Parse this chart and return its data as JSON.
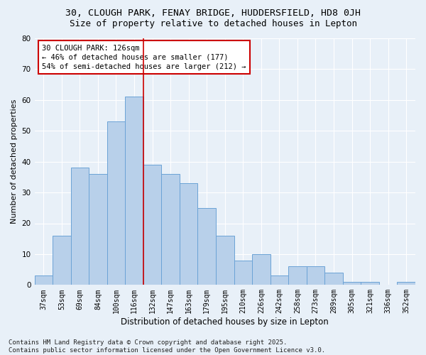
{
  "title1": "30, CLOUGH PARK, FENAY BRIDGE, HUDDERSFIELD, HD8 0JH",
  "title2": "Size of property relative to detached houses in Lepton",
  "xlabel": "Distribution of detached houses by size in Lepton",
  "ylabel": "Number of detached properties",
  "categories": [
    "37sqm",
    "53sqm",
    "69sqm",
    "84sqm",
    "100sqm",
    "116sqm",
    "132sqm",
    "147sqm",
    "163sqm",
    "179sqm",
    "195sqm",
    "210sqm",
    "226sqm",
    "242sqm",
    "258sqm",
    "273sqm",
    "289sqm",
    "305sqm",
    "321sqm",
    "336sqm",
    "352sqm"
  ],
  "values": [
    3,
    16,
    38,
    36,
    53,
    61,
    39,
    36,
    33,
    25,
    16,
    8,
    10,
    3,
    6,
    6,
    4,
    1,
    1,
    0,
    1
  ],
  "bar_color": "#b8d0ea",
  "bar_edge_color": "#6ba3d6",
  "redline_x": 5.5,
  "annotation_line1": "30 CLOUGH PARK: 126sqm",
  "annotation_line2": "← 46% of detached houses are smaller (177)",
  "annotation_line3": "54% of semi-detached houses are larger (212) →",
  "annotation_box_color": "#ffffff",
  "annotation_box_edge": "#cc0000",
  "redline_color": "#cc0000",
  "ylim": [
    0,
    80
  ],
  "yticks": [
    0,
    10,
    20,
    30,
    40,
    50,
    60,
    70,
    80
  ],
  "footer": "Contains HM Land Registry data © Crown copyright and database right 2025.\nContains public sector information licensed under the Open Government Licence v3.0.",
  "bg_color": "#e8f0f8",
  "grid_color": "#ffffff",
  "title1_fontsize": 9.5,
  "title2_fontsize": 9,
  "annot_fontsize": 7.5,
  "ylabel_fontsize": 8,
  "xlabel_fontsize": 8.5,
  "footer_fontsize": 6.5,
  "tick_fontsize": 7
}
